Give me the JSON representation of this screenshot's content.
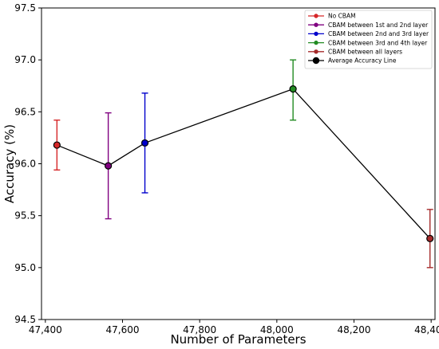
{
  "chart_data": {
    "type": "line",
    "title": "",
    "xlabel": "Number of Parameters",
    "ylabel": "Accuracy (%)",
    "xlim": [
      47390,
      48410
    ],
    "ylim": [
      94.5,
      97.5
    ],
    "x_ticks": [
      47400,
      47600,
      47800,
      48000,
      48200,
      48400
    ],
    "x_tick_labels": [
      "47,400",
      "47,600",
      "47,800",
      "48,000",
      "48,200",
      "48,400"
    ],
    "y_ticks": [
      94.5,
      95.0,
      95.5,
      96.0,
      96.5,
      97.0,
      97.5
    ],
    "y_tick_labels": [
      "94.5",
      "95.0",
      "95.5",
      "96.0",
      "96.5",
      "97.0",
      "97.5"
    ],
    "grid": false,
    "legend_position": "top-right",
    "series": [
      {
        "name": "No CBAM",
        "color": "#d62728",
        "x": 47430,
        "y": 96.18,
        "err_low": 95.94,
        "err_high": 96.42
      },
      {
        "name": "CBAM between 1st and 2nd layer",
        "color": "#800080",
        "x": 47563,
        "y": 95.98,
        "err_low": 95.47,
        "err_high": 96.49
      },
      {
        "name": "CBAM between 2nd and 3rd layer",
        "color": "#0000cc",
        "x": 47658,
        "y": 96.2,
        "err_low": 95.72,
        "err_high": 96.68
      },
      {
        "name": "CBAM between 3rd and 4th layer",
        "color": "#228b22",
        "x": 48042,
        "y": 96.72,
        "err_low": 96.42,
        "err_high": 97.0
      },
      {
        "name": "CBAM between all layers",
        "color": "#a52a2a",
        "x": 48397,
        "y": 95.28,
        "err_low": 95.0,
        "err_high": 95.56
      }
    ],
    "average_line": {
      "name": "Average Accuracy Line",
      "color": "#000000"
    }
  }
}
